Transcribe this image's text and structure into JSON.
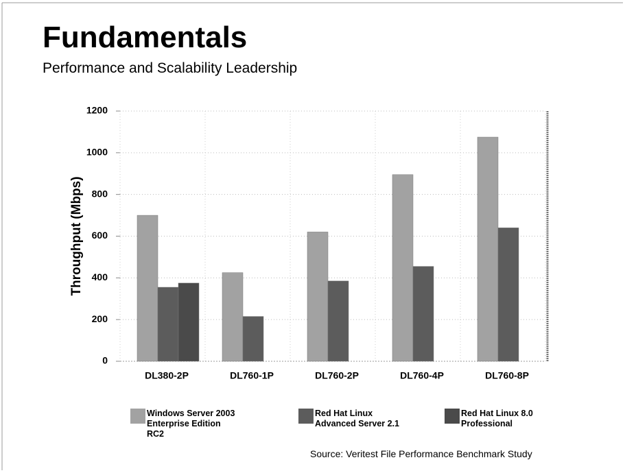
{
  "chart_data": {
    "type": "bar",
    "title": "Fundamentals",
    "subtitle": "Performance and Scalability Leadership",
    "ylabel": "Throughput (Mbps)",
    "categories": [
      "DL380-2P",
      "DL760-1P",
      "DL760-2P",
      "DL760-4P",
      "DL760-8P"
    ],
    "series": [
      {
        "name": "Windows Server 2003 Enterprise Edition RC2",
        "color": "#a2a2a2",
        "values": [
          700,
          425,
          620,
          895,
          1075
        ]
      },
      {
        "name": "Red Hat Linux Advanced Server 2.1",
        "color": "#5c5c5c",
        "values": [
          355,
          215,
          385,
          455,
          640
        ]
      },
      {
        "name": "Red Hat Linux 8.0 Professional",
        "color": "#4a4a4a",
        "values": [
          375,
          null,
          null,
          null,
          null
        ]
      }
    ],
    "ylim": [
      0,
      1200
    ],
    "yticks": [
      0,
      200,
      400,
      600,
      800,
      1000,
      1200
    ],
    "grid": true,
    "legend": "bottom",
    "annotation": "Source:  Veritest File Performance Benchmark Study"
  }
}
